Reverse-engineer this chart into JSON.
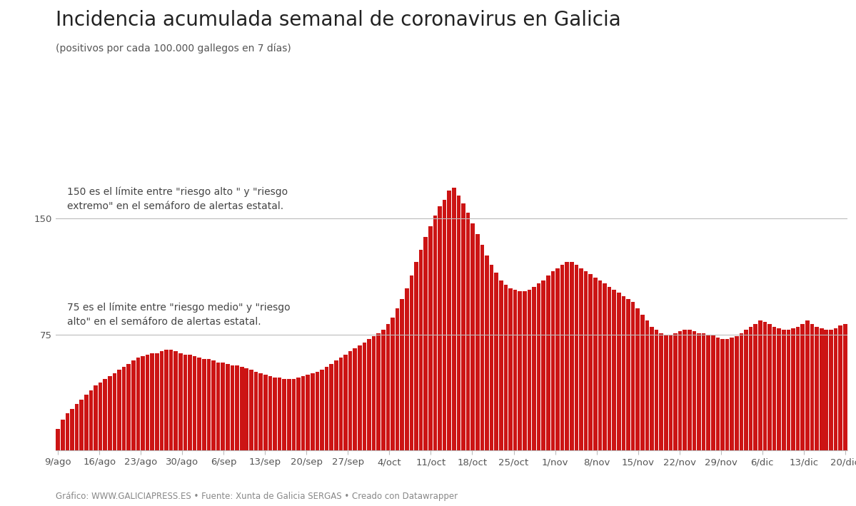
{
  "title": "Incidencia acumulada semanal de coronavirus en Galicia",
  "subtitle": "(positivos por cada 100.000 gallegos en 7 días)",
  "footer": "Gráfico: WWW.GALICIAPRESS.ES • Fuente: Xunta de Galicia SERGAS • Creado con Datawrapper",
  "bar_color": "#cc1414",
  "ref_line_color": "#bbbbbb",
  "ref_line_150": 150,
  "ref_line_75": 75,
  "annotation_150": "150 es el límite entre \"riesgo alto \" y \"riesgo\nextremo\" en el semáforo de alertas estatal.",
  "annotation_75": "75 es el límite entre \"riesgo medio\" y \"riesgo\nalto\" en el semáforo de alertas estatal.",
  "ytick_labels": [
    "75",
    "150"
  ],
  "ytick_values": [
    75,
    150
  ],
  "xtick_labels": [
    "9/ago",
    "16/ago",
    "23/ago",
    "30/ago",
    "6/sep",
    "13/sep",
    "20/sep",
    "27/sep",
    "4/oct",
    "11/oct",
    "18/oct",
    "25/oct",
    "1/nov",
    "8/nov",
    "15/nov",
    "22/nov",
    "29/nov",
    "6/dic",
    "13/dic",
    "20/dic"
  ],
  "values": [
    14,
    20,
    24,
    27,
    30,
    33,
    36,
    39,
    42,
    44,
    46,
    48,
    50,
    52,
    54,
    56,
    58,
    60,
    61,
    62,
    63,
    63,
    64,
    65,
    65,
    64,
    63,
    62,
    62,
    61,
    60,
    59,
    59,
    58,
    57,
    57,
    56,
    55,
    55,
    54,
    53,
    52,
    51,
    50,
    49,
    48,
    47,
    47,
    46,
    46,
    46,
    47,
    48,
    49,
    50,
    51,
    52,
    54,
    56,
    58,
    60,
    62,
    64,
    66,
    68,
    70,
    72,
    74,
    76,
    78,
    82,
    86,
    92,
    98,
    105,
    113,
    122,
    130,
    138,
    145,
    152,
    158,
    162,
    168,
    170,
    165,
    160,
    154,
    147,
    140,
    133,
    126,
    120,
    115,
    110,
    107,
    105,
    104,
    103,
    103,
    104,
    106,
    108,
    110,
    113,
    116,
    118,
    120,
    122,
    122,
    120,
    118,
    116,
    114,
    112,
    110,
    108,
    106,
    104,
    102,
    100,
    98,
    96,
    92,
    88,
    84,
    80,
    78,
    76,
    75,
    75,
    76,
    77,
    78,
    78,
    77,
    76,
    76,
    75,
    75,
    73,
    72,
    72,
    73,
    74,
    76,
    78,
    80,
    82,
    84,
    83,
    82,
    80,
    79,
    78,
    78,
    79,
    80,
    82,
    84,
    82,
    80,
    79,
    78,
    78,
    79,
    81,
    82
  ],
  "ylim": [
    0,
    190
  ],
  "background_color": "#ffffff",
  "title_fontsize": 20,
  "subtitle_fontsize": 10,
  "annotation_fontsize": 10,
  "tick_fontsize": 9.5,
  "footer_fontsize": 8.5
}
